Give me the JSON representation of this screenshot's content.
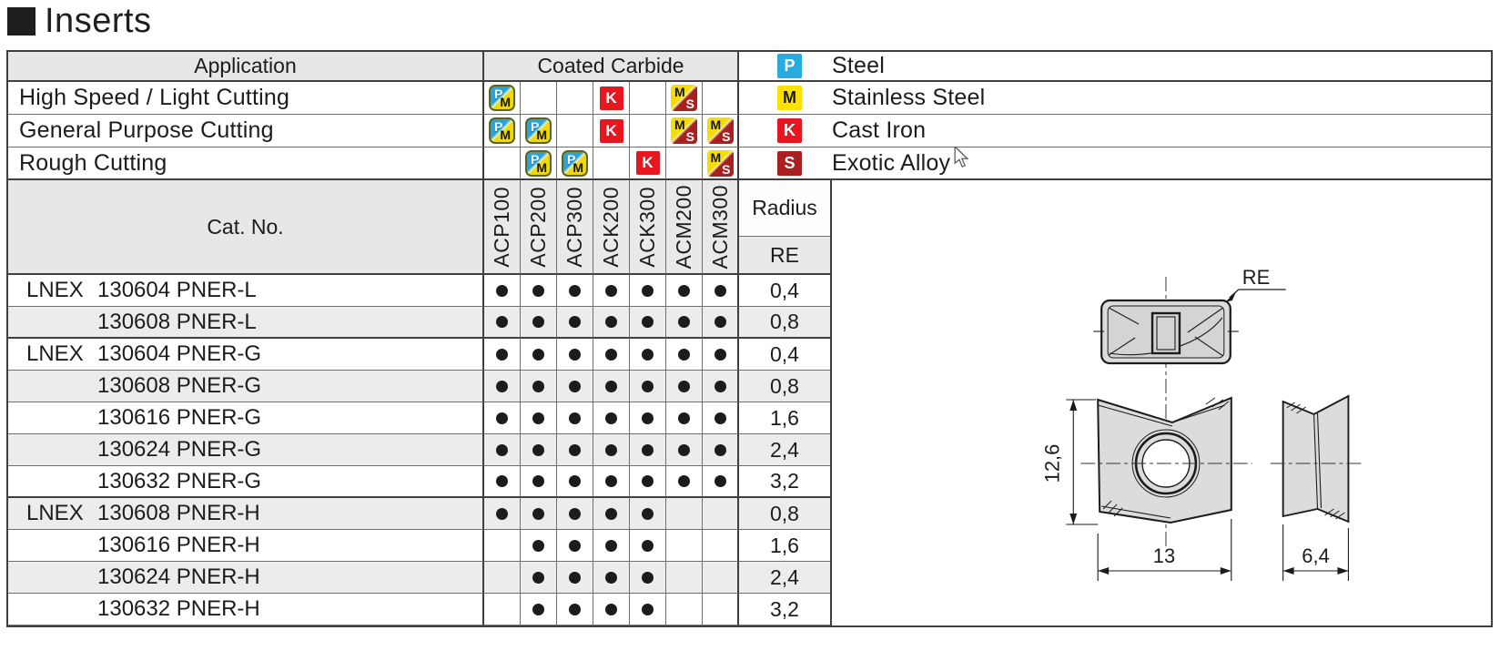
{
  "title": {
    "text": "Inserts"
  },
  "table": {
    "application_header": "Application",
    "coated_carbide_header": "Coated Carbide",
    "cat_no_header": "Cat. No.",
    "radius_header": "Radius",
    "re_header": "RE",
    "application_rows": [
      {
        "label": "High Speed / Light Cutting",
        "icons": [
          "PM",
          null,
          null,
          "K",
          null,
          "MS",
          null
        ]
      },
      {
        "label": "General Purpose Cutting",
        "icons": [
          "PM",
          "PM",
          null,
          "K",
          null,
          "MS",
          "MS"
        ]
      },
      {
        "label": "Rough Cutting",
        "icons": [
          null,
          "PM",
          "PM",
          null,
          "K",
          null,
          "MS"
        ]
      }
    ],
    "grades": [
      "ACP100",
      "ACP200",
      "ACP300",
      "ACK200",
      "ACK300",
      "ACM200",
      "ACM300"
    ],
    "rows": [
      {
        "prefix": "LNEX",
        "code": "130604 PNER-L",
        "dots": [
          1,
          1,
          1,
          1,
          1,
          1,
          1
        ],
        "re": "0,4"
      },
      {
        "prefix": "",
        "code": "130608 PNER-L",
        "dots": [
          1,
          1,
          1,
          1,
          1,
          1,
          1
        ],
        "re": "0,8"
      },
      {
        "prefix": "LNEX",
        "code": "130604 PNER-G",
        "dots": [
          1,
          1,
          1,
          1,
          1,
          1,
          1
        ],
        "re": "0,4"
      },
      {
        "prefix": "",
        "code": "130608 PNER-G",
        "dots": [
          1,
          1,
          1,
          1,
          1,
          1,
          1
        ],
        "re": "0,8"
      },
      {
        "prefix": "",
        "code": "130616 PNER-G",
        "dots": [
          1,
          1,
          1,
          1,
          1,
          1,
          1
        ],
        "re": "1,6"
      },
      {
        "prefix": "",
        "code": "130624 PNER-G",
        "dots": [
          1,
          1,
          1,
          1,
          1,
          1,
          1
        ],
        "re": "2,4"
      },
      {
        "prefix": "",
        "code": "130632 PNER-G",
        "dots": [
          1,
          1,
          1,
          1,
          1,
          1,
          1
        ],
        "re": "3,2"
      },
      {
        "prefix": "LNEX",
        "code": "130608 PNER-H",
        "dots": [
          1,
          1,
          1,
          1,
          1,
          0,
          0
        ],
        "re": "0,8"
      },
      {
        "prefix": "",
        "code": "130616 PNER-H",
        "dots": [
          0,
          1,
          1,
          1,
          1,
          0,
          0
        ],
        "re": "1,6"
      },
      {
        "prefix": "",
        "code": "130624 PNER-H",
        "dots": [
          0,
          1,
          1,
          1,
          1,
          0,
          0
        ],
        "re": "2,4"
      },
      {
        "prefix": "",
        "code": "130632 PNER-H",
        "dots": [
          0,
          1,
          1,
          1,
          1,
          0,
          0
        ],
        "re": "3,2"
      }
    ]
  },
  "legend": [
    {
      "symbol": "P",
      "label": "Steel",
      "color": "#29abe2",
      "text_color": "#ffffff"
    },
    {
      "symbol": "M",
      "label": "Stainless Steel",
      "color": "#ffe100",
      "text_color": "#1a1a1a"
    },
    {
      "symbol": "K",
      "label": "Cast Iron",
      "color": "#e7161f",
      "text_color": "#ffffff"
    },
    {
      "symbol": "S",
      "label": "Exotic Alloy",
      "color": "#a8201f",
      "text_color": "#ffffff"
    }
  ],
  "icon_defs": {
    "PM": {
      "first": "P",
      "second": "M"
    },
    "MS": {
      "first": "M",
      "second": "S"
    },
    "K": {
      "letter": "K",
      "color": "#e7161f"
    }
  },
  "drawing": {
    "re_label": "RE",
    "height_dim": "12,6",
    "width_dim": "13",
    "thickness_dim": "6,4"
  }
}
